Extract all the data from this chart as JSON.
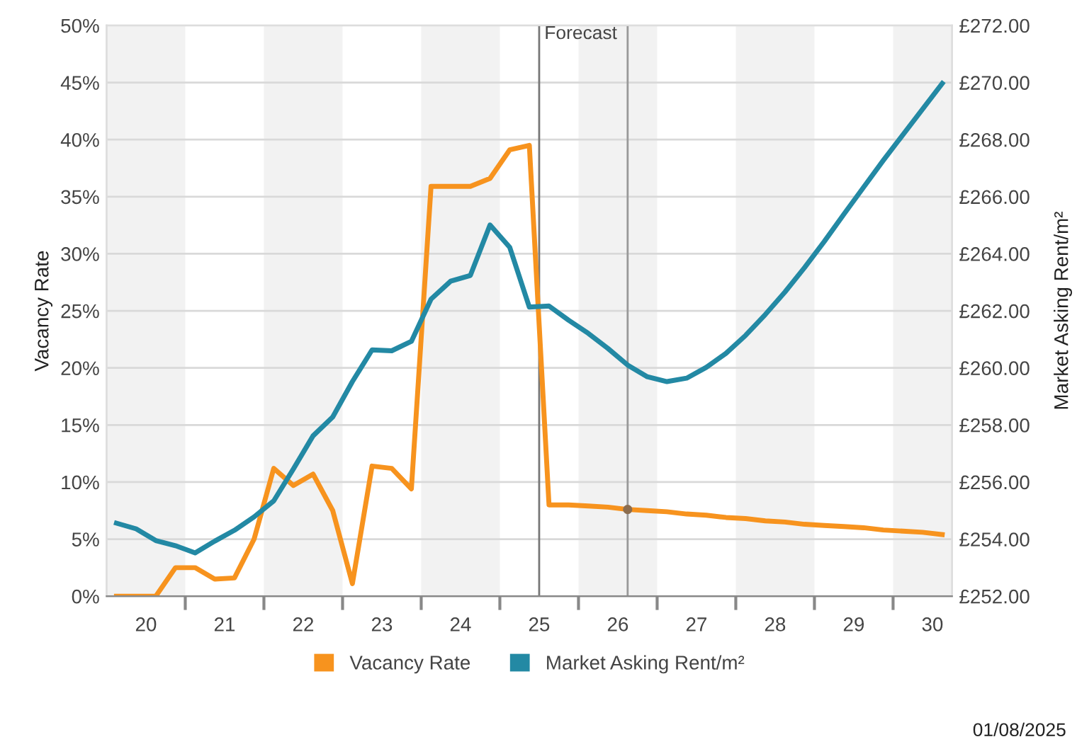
{
  "chart_data": {
    "type": "line",
    "xlabel": null,
    "ylabel": "Vacancy Rate",
    "y2label": "Market Asking Rent/m²",
    "x": [
      19.625,
      19.875,
      20.125,
      20.375,
      20.625,
      20.875,
      21.125,
      21.375,
      21.625,
      21.875,
      22.125,
      22.375,
      22.625,
      22.875,
      23.125,
      23.375,
      23.625,
      23.875,
      24.125,
      24.375,
      24.625,
      24.875,
      25.125,
      25.375,
      25.625,
      25.875,
      26.125,
      26.375,
      26.625,
      26.875,
      27.125,
      27.375,
      27.625,
      27.875,
      28.125,
      28.375,
      28.625,
      28.875,
      29.125,
      29.375,
      29.625,
      29.875,
      30.125
    ],
    "series": [
      {
        "name": "Vacancy Rate",
        "color": "#f7931e",
        "values": [
          0,
          0,
          0,
          2.5,
          2.5,
          1.5,
          1.6,
          5.0,
          11.2,
          9.7,
          10.7,
          7.5,
          1.1,
          11.4,
          11.2,
          9.4,
          35.9,
          35.9,
          35.9,
          36.6,
          39.1,
          39.5,
          8.0,
          8.0,
          7.9,
          7.8,
          7.6,
          7.5,
          7.4,
          7.2,
          7.1,
          6.9,
          6.8,
          6.6,
          6.5,
          6.3,
          6.2,
          6.1,
          6.0,
          5.8,
          5.7,
          5.6,
          5.4
        ]
      },
      {
        "name": "Market Asking Rent/m²",
        "color": "#2389a4",
        "axis": "y2",
        "values": [
          254.56,
          254.36,
          253.95,
          253.77,
          253.52,
          253.93,
          254.31,
          254.78,
          255.34,
          256.46,
          257.62,
          258.28,
          259.52,
          260.63,
          260.6,
          260.93,
          262.41,
          263.04,
          263.24,
          265.01,
          264.23,
          262.13,
          262.17,
          261.67,
          261.21,
          260.68,
          260.1,
          259.69,
          259.52,
          259.64,
          260.02,
          260.51,
          261.14,
          261.87,
          262.66,
          263.52,
          264.43,
          265.39,
          266.33,
          267.27,
          268.17,
          269.07,
          269.97
        ]
      },
      {
        "type": "scatter",
        "marker": "circle",
        "color": "#8c6d4f",
        "x": [
          26.125
        ],
        "values": [
          7.6
        ]
      }
    ],
    "xlim": [
      19.5,
      30.25
    ],
    "xticks": [
      20,
      21,
      22,
      23,
      24,
      25,
      26,
      27,
      28,
      29,
      30,
      {
        "value": 20.5,
        "label": null
      },
      {
        "value": 21.5,
        "label": null
      },
      {
        "value": 22.5,
        "label": null
      },
      {
        "value": 23.5,
        "label": null
      },
      {
        "value": 24.5,
        "label": null
      },
      {
        "value": 25.5,
        "label": null
      },
      {
        "value": 26.5,
        "label": null
      },
      {
        "value": 27.5,
        "label": null
      },
      {
        "value": 28.5,
        "label": null
      },
      {
        "value": 29.5,
        "label": null
      }
    ],
    "ylim": [
      0,
      50
    ],
    "yticks": [
      {
        "value": 0,
        "label": "0%"
      },
      {
        "value": 5,
        "label": "5%"
      },
      {
        "value": 10,
        "label": "10%"
      },
      {
        "value": 15,
        "label": "15%"
      },
      {
        "value": 20,
        "label": "20%"
      },
      {
        "value": 25,
        "label": "25%"
      },
      {
        "value": 30,
        "label": "30%"
      },
      {
        "value": 35,
        "label": "35%"
      },
      {
        "value": 40,
        "label": "40%"
      },
      {
        "value": 45,
        "label": "45%"
      },
      {
        "value": 50,
        "label": "50%"
      }
    ],
    "y2lim": [
      252,
      272
    ],
    "y2ticks": [
      {
        "value": 252,
        "label": "£252.00"
      },
      {
        "value": 254,
        "label": "£254.00"
      },
      {
        "value": 256,
        "label": "£256.00"
      },
      {
        "value": 258,
        "label": "£258.00"
      },
      {
        "value": 260,
        "label": "£260.00"
      },
      {
        "value": 262,
        "label": "£262.00"
      },
      {
        "value": 264,
        "label": "£264.00"
      },
      {
        "value": 266,
        "label": "£266.00"
      },
      {
        "value": 268,
        "label": "£268.00"
      },
      {
        "value": 270,
        "label": "£270.00"
      },
      {
        "value": 272,
        "label": "£272.00"
      }
    ],
    "bands": [
      {
        "axis": "x",
        "from": 19.5,
        "to": 20.5,
        "color": "#f2f2f2"
      },
      {
        "axis": "x",
        "from": 21.5,
        "to": 22.5,
        "color": "#f2f2f2"
      },
      {
        "axis": "x",
        "from": 23.5,
        "to": 24.5,
        "color": "#f2f2f2"
      },
      {
        "axis": "x",
        "from": 25.5,
        "to": 26.5,
        "color": "#f2f2f2"
      },
      {
        "axis": "x",
        "from": 27.5,
        "to": 28.5,
        "color": "#f2f2f2"
      },
      {
        "axis": "x",
        "from": 29.5,
        "to": 30.25,
        "color": "#f2f2f2"
      }
    ],
    "ref_lines": [
      {
        "axis": "x",
        "value": 25,
        "label": "Forecast",
        "color": "#777777"
      },
      {
        "axis": "x",
        "value": 26.125,
        "color": "#999999"
      }
    ],
    "grid": "y",
    "legend": "bottom",
    "annotations": [
      "01/08/2025"
    ]
  }
}
